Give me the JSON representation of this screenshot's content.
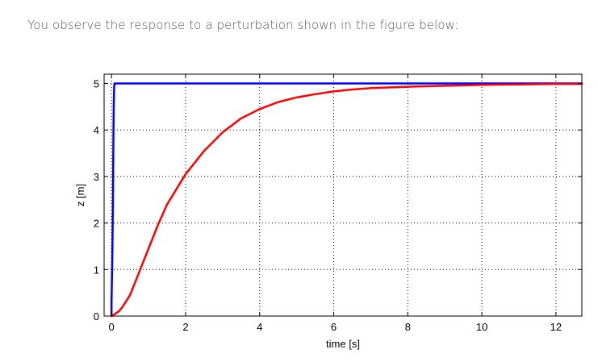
{
  "question": "You observe the response to a perturbation shown in the figure below:",
  "chart_data": {
    "type": "line",
    "title": "",
    "xlabel": "time [s]",
    "ylabel": "z [m]",
    "xlim": [
      -0.2,
      12.7
    ],
    "ylim": [
      0,
      5.2
    ],
    "xticks": [
      0,
      2,
      4,
      6,
      8,
      10,
      12
    ],
    "yticks": [
      0,
      1,
      2,
      3,
      4,
      5
    ],
    "xtick_labels": [
      "0",
      "2",
      "4",
      "6",
      "8",
      "10",
      "12"
    ],
    "ytick_labels": [
      "0",
      "1",
      "2",
      "3",
      "4",
      "5"
    ],
    "grid": true,
    "grid_style": "dotted",
    "legend": "none",
    "series": [
      {
        "color": "#0000ff",
        "x": [
          0,
          0,
          0.02,
          0.04,
          0.05,
          0.06,
          0.07,
          0.08,
          12.7
        ],
        "y": [
          0,
          0.3,
          1.2,
          2.5,
          3.7,
          4.5,
          4.9,
          5.0,
          5.0
        ]
      },
      {
        "color": "#ff0000",
        "x": [
          0,
          0.05,
          0.1,
          0.2,
          0.3,
          0.5,
          0.75,
          1,
          1.25,
          1.5,
          2,
          2.5,
          3,
          3.5,
          4,
          4.5,
          5,
          5.5,
          6,
          6.5,
          7,
          8,
          9,
          10,
          11,
          12,
          12.7
        ],
        "y": [
          0,
          0.02,
          0.05,
          0.1,
          0.2,
          0.45,
          0.95,
          1.45,
          1.95,
          2.4,
          3.05,
          3.55,
          3.95,
          4.25,
          4.45,
          4.6,
          4.7,
          4.77,
          4.83,
          4.87,
          4.9,
          4.93,
          4.95,
          4.97,
          4.98,
          4.99,
          4.99
        ]
      }
    ]
  }
}
